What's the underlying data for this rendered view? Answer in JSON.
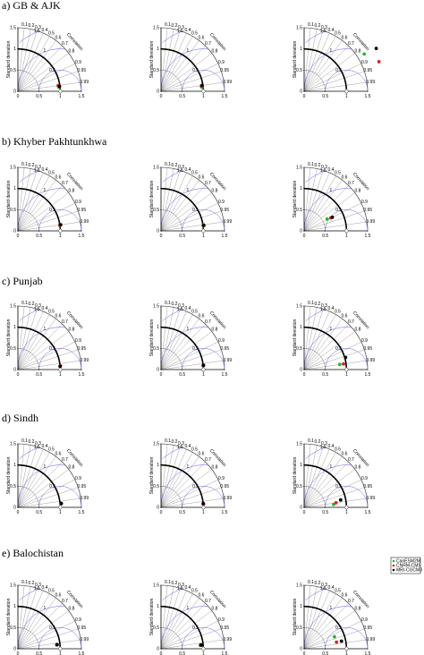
{
  "chart_data": {
    "type": "scatter",
    "title": "",
    "axis_labels": {
      "ylabel": "Standard deviation",
      "arc_label": "Correlation",
      "sd_ticks": [
        "0",
        "0.5",
        "1",
        "1.5"
      ],
      "correlation_ticks": [
        "0.1",
        "0.2",
        "0.3",
        "0.4",
        "0.5",
        "0.6",
        "0.7",
        "0.8",
        "0.9",
        "0.95",
        "0.99"
      ]
    },
    "rms_labels": [
      "0.5",
      "1",
      "1.5"
    ],
    "legend": {
      "location": "bottom-right panel (e, column 3), top-right",
      "items": [
        {
          "name": "CanESM2M",
          "color": "#22bb22"
        },
        {
          "name": "CNRM-CM5",
          "color": "#dd2222"
        },
        {
          "name": "MRI-CGCM3",
          "color": "#000000"
        }
      ]
    },
    "colors": {
      "reference_arc": "#000000",
      "rms_arcs": "#5a5aee",
      "grid": "#888888"
    },
    "rows": [
      {
        "label": "a) GB & AJK",
        "panels": [
          {
            "points": [
              {
                "series": "CanESM2M",
                "sd": 0.97,
                "corr": 0.995
              },
              {
                "series": "CNRM-CM5",
                "sd": 0.96,
                "corr": 0.99
              },
              {
                "series": "MRI-CGCM3",
                "sd": 0.99,
                "corr": 0.993
              }
            ]
          },
          {
            "points": [
              {
                "series": "CanESM2M",
                "sd": 0.97,
                "corr": 0.995
              },
              {
                "series": "CNRM-CM5",
                "sd": 0.96,
                "corr": 0.992
              },
              {
                "series": "MRI-CGCM3",
                "sd": 0.98,
                "corr": 0.99
              }
            ]
          },
          {
            "points": [
              {
                "series": "CanESM2M",
                "sd": 1.67,
                "corr": 0.85
              },
              {
                "series": "CNRM-CM5",
                "sd": 1.9,
                "corr": 0.93
              },
              {
                "series": "MRI-CGCM3",
                "sd": 1.98,
                "corr": 0.86
              }
            ]
          }
        ]
      },
      {
        "label": "b) Khyber Pakhtunkhwa",
        "panels": [
          {
            "points": [
              {
                "series": "CanESM2M",
                "sd": 1.0,
                "corr": 0.99
              },
              {
                "series": "CNRM-CM5",
                "sd": 1.0,
                "corr": 0.992
              },
              {
                "series": "MRI-CGCM3",
                "sd": 1.02,
                "corr": 0.99
              }
            ]
          },
          {
            "points": [
              {
                "series": "CanESM2M",
                "sd": 1.0,
                "corr": 0.993
              },
              {
                "series": "CNRM-CM5",
                "sd": 1.01,
                "corr": 0.99
              },
              {
                "series": "MRI-CGCM3",
                "sd": 1.02,
                "corr": 0.992
              }
            ]
          },
          {
            "points": [
              {
                "series": "CanESM2M",
                "sd": 0.61,
                "corr": 0.89
              },
              {
                "series": "CNRM-CM5",
                "sd": 0.7,
                "corr": 0.9
              },
              {
                "series": "MRI-CGCM3",
                "sd": 0.74,
                "corr": 0.9
              }
            ]
          }
        ]
      },
      {
        "label": "c) Punjab",
        "panels": [
          {
            "points": [
              {
                "series": "CanESM2M",
                "sd": 1.0,
                "corr": 0.997
              },
              {
                "series": "CNRM-CM5",
                "sd": 1.01,
                "corr": 0.996
              },
              {
                "series": "MRI-CGCM3",
                "sd": 1.0,
                "corr": 0.997
              }
            ]
          },
          {
            "points": [
              {
                "series": "CanESM2M",
                "sd": 1.0,
                "corr": 0.995
              },
              {
                "series": "CNRM-CM5",
                "sd": 1.0,
                "corr": 0.996
              },
              {
                "series": "MRI-CGCM3",
                "sd": 1.01,
                "corr": 0.995
              }
            ]
          },
          {
            "points": [
              {
                "series": "CanESM2M",
                "sd": 0.85,
                "corr": 0.99
              },
              {
                "series": "CNRM-CM5",
                "sd": 0.94,
                "corr": 0.99
              },
              {
                "series": "MRI-CGCM3",
                "sd": 1.02,
                "corr": 0.96
              }
            ]
          }
        ]
      },
      {
        "label": "d) Sindh",
        "panels": [
          {
            "points": [
              {
                "series": "CanESM2M",
                "sd": 1.02,
                "corr": 0.997
              },
              {
                "series": "CNRM-CM5",
                "sd": 1.03,
                "corr": 0.996
              },
              {
                "series": "MRI-CGCM3",
                "sd": 1.03,
                "corr": 0.996
              }
            ]
          },
          {
            "points": [
              {
                "series": "CanESM2M",
                "sd": 1.0,
                "corr": 0.997
              },
              {
                "series": "CNRM-CM5",
                "sd": 1.01,
                "corr": 0.997
              },
              {
                "series": "MRI-CGCM3",
                "sd": 1.0,
                "corr": 0.996
              }
            ]
          },
          {
            "points": [
              {
                "series": "CanESM2M",
                "sd": 0.7,
                "corr": 0.995
              },
              {
                "series": "CNRM-CM5",
                "sd": 0.76,
                "corr": 0.99
              },
              {
                "series": "MRI-CGCM3",
                "sd": 0.88,
                "corr": 0.98
              }
            ]
          }
        ]
      },
      {
        "label": "e) Balochistan",
        "panels": [
          {
            "points": [
              {
                "series": "CanESM2M",
                "sd": 0.92,
                "corr": 0.995
              },
              {
                "series": "CNRM-CM5",
                "sd": 0.93,
                "corr": 0.994
              },
              {
                "series": "MRI-CGCM3",
                "sd": 0.93,
                "corr": 0.995
              }
            ]
          },
          {
            "points": [
              {
                "series": "CanESM2M",
                "sd": 0.93,
                "corr": 0.996
              },
              {
                "series": "CNRM-CM5",
                "sd": 0.95,
                "corr": 0.995
              },
              {
                "series": "MRI-CGCM3",
                "sd": 0.95,
                "corr": 0.996
              }
            ]
          },
          {
            "points": [
              {
                "series": "CanESM2M",
                "sd": 0.77,
                "corr": 0.93
              },
              {
                "series": "CNRM-CM5",
                "sd": 0.78,
                "corr": 0.98
              },
              {
                "series": "MRI-CGCM3",
                "sd": 0.9,
                "corr": 0.98
              }
            ]
          }
        ]
      }
    ]
  }
}
